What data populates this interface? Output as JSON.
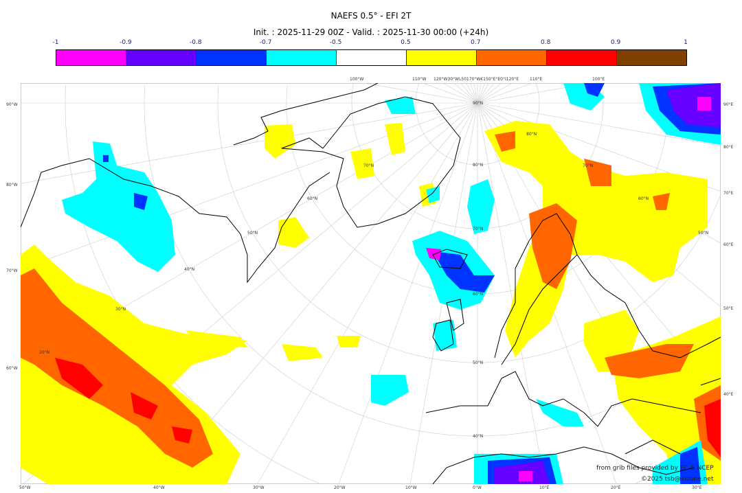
{
  "title": "NAEFS 0.5° - EFI 2T",
  "subtitle": "Init. : 2025-11-29 00Z - Valid. : 2025-11-30 00:00 (+24h)",
  "colorbar": {
    "labels": [
      "-1",
      "-0.9",
      "-0.8",
      "-0.7",
      "-0.5",
      "0.5",
      "0.7",
      "0.8",
      "0.9",
      "1"
    ],
    "colors": [
      "#ff00ff",
      "#6600ff",
      "#0033ff",
      "#00ffff",
      "#ffffff",
      "#ffff00",
      "#ff6600",
      "#ff0000",
      "#7f3f00"
    ]
  },
  "axes": {
    "left": [
      "90°W",
      "80°W",
      "70°W",
      "60°W"
    ],
    "right": [
      "90°E",
      "80°E",
      "70°E",
      "60°E",
      "50°E",
      "40°E"
    ],
    "bottom": [
      "50°W",
      "40°W",
      "30°W",
      "20°W",
      "10°W",
      "0°W",
      "10°E",
      "20°E",
      "30°E"
    ],
    "top": [
      "100°W",
      "110°W",
      "120°W30°WL50170°W€150°E°E0°I120°E",
      "110°E",
      "100°E"
    ],
    "lat_labels": [
      "90°N",
      "80°N",
      "70°N",
      "60°N",
      "50°N",
      "40°N",
      "80°N",
      "70°N",
      "70°N",
      "60°N",
      "60°N",
      "50°N",
      "50°N",
      "40°N",
      "30°N",
      "20°N"
    ]
  },
  "credits": {
    "source": "from grib files provided by EC & NCEP",
    "copyright": "©2025 tsb@irizone.net"
  }
}
